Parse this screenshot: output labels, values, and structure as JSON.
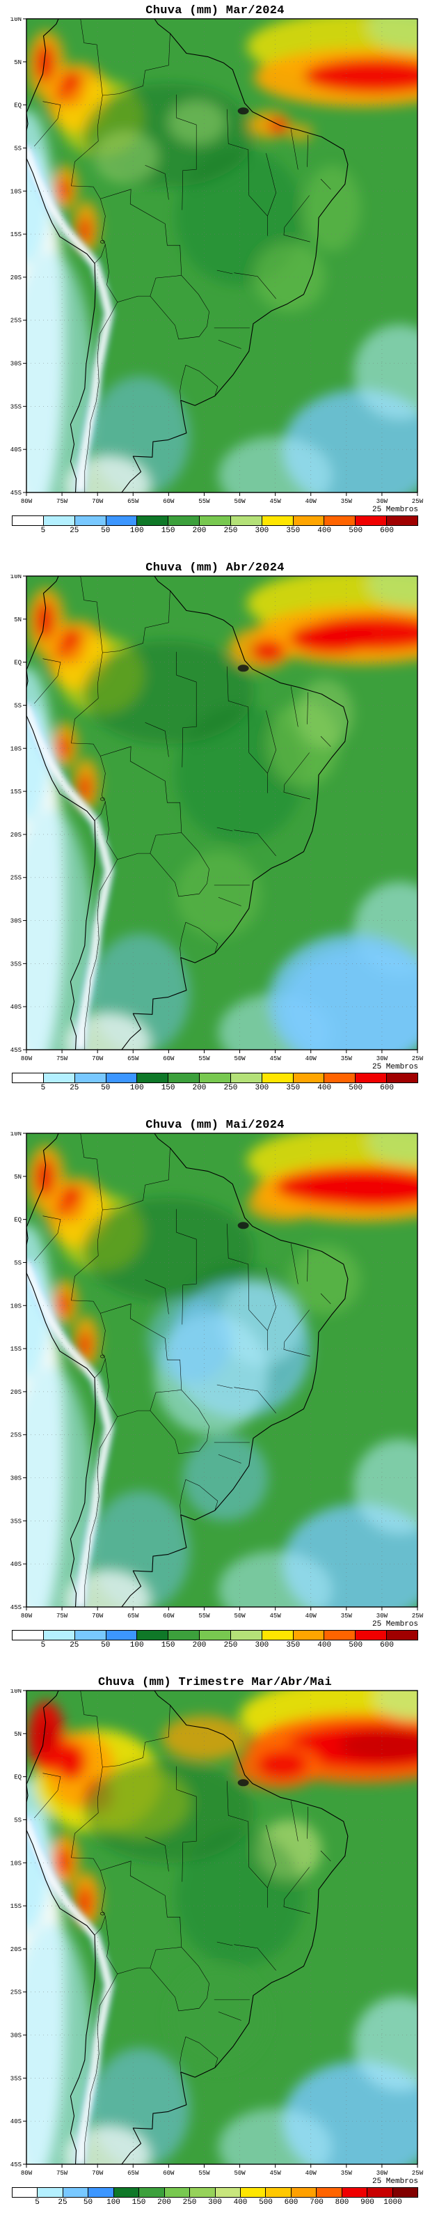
{
  "axes": {
    "lat_labels": [
      "10N",
      "5N",
      "EQ",
      "5S",
      "10S",
      "15S",
      "20S",
      "25S",
      "30S",
      "35S",
      "40S",
      "45S"
    ],
    "lon_labels": [
      "80W",
      "75W",
      "70W",
      "65W",
      "60W",
      "55W",
      "50W",
      "45W",
      "40W",
      "35W",
      "30W",
      "25W"
    ]
  },
  "panels": [
    {
      "id": "mar-2024",
      "title": "Chuva (mm) Mar/2024",
      "members_label": "25 Membros",
      "colorbar": {
        "levels": [
          5,
          25,
          50,
          100,
          150,
          200,
          250,
          300,
          350,
          400,
          500,
          600
        ],
        "colors": [
          "#FFFFFF",
          "#B4F0FF",
          "#78C8FF",
          "#3C96FF",
          "#0F7828",
          "#3CA03C",
          "#78C850",
          "#B4E178",
          "#FFE600",
          "#FFA500",
          "#FF6400",
          "#F00000",
          "#A00000"
        ]
      }
    },
    {
      "id": "abr-2024",
      "title": "Chuva (mm) Abr/2024",
      "members_label": "25 Membros",
      "colorbar": {
        "levels": [
          5,
          25,
          50,
          100,
          150,
          200,
          250,
          300,
          350,
          400,
          500,
          600
        ],
        "colors": [
          "#FFFFFF",
          "#B4F0FF",
          "#78C8FF",
          "#3C96FF",
          "#0F7828",
          "#3CA03C",
          "#78C850",
          "#B4E178",
          "#FFE600",
          "#FFA500",
          "#FF6400",
          "#F00000",
          "#A00000"
        ]
      }
    },
    {
      "id": "mai-2024",
      "title": "Chuva (mm) Mai/2024",
      "members_label": "25 Membros",
      "colorbar": {
        "levels": [
          5,
          25,
          50,
          100,
          150,
          200,
          250,
          300,
          350,
          400,
          500,
          600
        ],
        "colors": [
          "#FFFFFF",
          "#B4F0FF",
          "#78C8FF",
          "#3C96FF",
          "#0F7828",
          "#3CA03C",
          "#78C850",
          "#B4E178",
          "#FFE600",
          "#FFA500",
          "#FF6400",
          "#F00000",
          "#A00000"
        ]
      }
    },
    {
      "id": "tri-mam-2024",
      "title": "Chuva (mm) Trimestre Mar/Abr/Mai",
      "members_label": "25 Membros",
      "colorbar": {
        "levels": [
          5,
          25,
          50,
          100,
          150,
          200,
          250,
          300,
          400,
          500,
          600,
          700,
          800,
          900,
          1000
        ],
        "colors": [
          "#FFFFFF",
          "#B4F0FF",
          "#78C8FF",
          "#3C96FF",
          "#0F7828",
          "#3CA03C",
          "#78C850",
          "#96D25A",
          "#C8E67D",
          "#FFE600",
          "#FFC800",
          "#FFA000",
          "#FF6400",
          "#F00000",
          "#C80000",
          "#820000"
        ]
      }
    }
  ],
  "chart_data": [
    {
      "type": "heatmap",
      "title": "Chuva (mm) Mar/2024",
      "units": "mm",
      "x_ticks": [
        "80W",
        "75W",
        "70W",
        "65W",
        "60W",
        "55W",
        "50W",
        "45W",
        "40W",
        "35W",
        "30W",
        "25W"
      ],
      "y_ticks": [
        "10N",
        "5N",
        "EQ",
        "5S",
        "10S",
        "15S",
        "20S",
        "25S",
        "30S",
        "35S",
        "40S",
        "45S"
      ],
      "contour_levels_mm": [
        5,
        25,
        50,
        100,
        150,
        200,
        250,
        300,
        350,
        400,
        500,
        600
      ],
      "palette_hex": [
        "#FFFFFF",
        "#B4F0FF",
        "#78C8FF",
        "#3C96FF",
        "#0F7828",
        "#3CA03C",
        "#78C850",
        "#B4E178",
        "#FFE600",
        "#FFA500",
        "#FF6400",
        "#F00000",
        "#A00000"
      ],
      "annotation": "25 Membros",
      "visible_features": [
        "Red band above 600 mm along the equatorial Atlantic ITCZ (about 2N-5N)",
        "Orange/red maxima (400-600 mm) over the far northwest Amazon and the Colombian Pacific coast",
        "Local orange/red maxima along the eastern Andes of Peru and near the north coast of Maranhao",
        "Broad greens (100-300 mm) over most of Brazil and the tropical oceans",
        "White to light blue (<50 mm) along the Chile/Peru coast, southeast Pacific and Patagonia",
        "Light blue patches (25-100 mm) over the subtropical South Atlantic"
      ]
    },
    {
      "type": "heatmap",
      "title": "Chuva (mm) Abr/2024",
      "units": "mm",
      "x_ticks": [
        "80W",
        "75W",
        "70W",
        "65W",
        "60W",
        "55W",
        "50W",
        "45W",
        "40W",
        "35W",
        "30W",
        "25W"
      ],
      "y_ticks": [
        "10N",
        "5N",
        "EQ",
        "5S",
        "10S",
        "15S",
        "20S",
        "25S",
        "30S",
        "35S",
        "40S",
        "45S"
      ],
      "contour_levels_mm": [
        5,
        25,
        50,
        100,
        150,
        200,
        250,
        300,
        350,
        400,
        500,
        600
      ],
      "palette_hex": [
        "#FFFFFF",
        "#B4F0FF",
        "#78C8FF",
        "#3C96FF",
        "#0F7828",
        "#3CA03C",
        "#78C850",
        "#B4E178",
        "#FFE600",
        "#FFA500",
        "#FF6400",
        "#F00000",
        "#A00000"
      ],
      "annotation": "25 Membros",
      "visible_features": [
        "ITCZ band above 600 mm widens and extends westward to the Amapa coast",
        "Orange/red maxima persist over the northwest Amazon and Colombian Pacific coast",
        "Eastern Brazil slightly drier with lighter greens (150-250 mm)",
        "White/light blue dry strip along the Andes and southeast Pacific",
        "Light blue (25-100 mm) over the subtropical South Atlantic and Patagonia"
      ]
    },
    {
      "type": "heatmap",
      "title": "Chuva (mm) Mai/2024",
      "units": "mm",
      "x_ticks": [
        "80W",
        "75W",
        "70W",
        "65W",
        "60W",
        "55W",
        "50W",
        "45W",
        "40W",
        "35W",
        "30W",
        "25W"
      ],
      "y_ticks": [
        "10N",
        "5N",
        "EQ",
        "5S",
        "10S",
        "15S",
        "20S",
        "25S",
        "30S",
        "35S",
        "40S",
        "45S"
      ],
      "contour_levels_mm": [
        5,
        25,
        50,
        100,
        150,
        200,
        250,
        300,
        350,
        400,
        500,
        600
      ],
      "palette_hex": [
        "#FFFFFF",
        "#B4F0FF",
        "#78C8FF",
        "#3C96FF",
        "#0F7828",
        "#3CA03C",
        "#78C850",
        "#B4E178",
        "#FFE600",
        "#FFA500",
        "#FF6400",
        "#F00000",
        "#A00000"
      ],
      "annotation": "25 Membros",
      "visible_features": [
        "Interior central Brazil dries out to 25-100 mm (light blue) at the start of the dry season",
        "ITCZ band remains above 600 mm across the equatorial Atlantic up to the north coast",
        "Orange/red maxima continue over the northwest Amazon and Colombian Pacific coast",
        "Greens with blue patches over southern Brazil and adjacent Atlantic",
        "White dry strip along the Chile/Peru coast and southeast Pacific"
      ]
    },
    {
      "type": "heatmap",
      "title": "Chuva (mm) Trimestre Mar/Abr/Mai",
      "units": "mm",
      "x_ticks": [
        "80W",
        "75W",
        "70W",
        "65W",
        "60W",
        "55W",
        "50W",
        "45W",
        "40W",
        "35W",
        "30W",
        "25W"
      ],
      "y_ticks": [
        "10N",
        "5N",
        "EQ",
        "5S",
        "10S",
        "15S",
        "20S",
        "25S",
        "30S",
        "35S",
        "40S",
        "45S"
      ],
      "contour_levels_mm": [
        5,
        25,
        50,
        100,
        150,
        200,
        250,
        300,
        400,
        500,
        600,
        700,
        800,
        900,
        1000
      ],
      "palette_hex": [
        "#FFFFFF",
        "#B4F0FF",
        "#78C8FF",
        "#3C96FF",
        "#0F7828",
        "#3CA03C",
        "#78C850",
        "#96D25A",
        "#C8E67D",
        "#FFE600",
        "#FFC800",
        "#FFA000",
        "#FF6400",
        "#F00000",
        "#C80000",
        "#820000"
      ],
      "annotation": "25 Membros",
      "visible_features": [
        "Seasonal totals above 1000 mm (dark red) along the ITCZ and near the mouth of the Amazon",
        "600-900 mm (orange/red) over the northwest Amazon and the Guianas coast",
        "Yellow patches (400-600 mm) across the central Amazon",
        "Greens (150-400 mm) over central and southern Brazil",
        "Below 5 mm (white) along the Chilean coast, southeast Pacific and Patagonia",
        "Light blue (25-100 mm) over the subtropical South Atlantic"
      ]
    }
  ]
}
